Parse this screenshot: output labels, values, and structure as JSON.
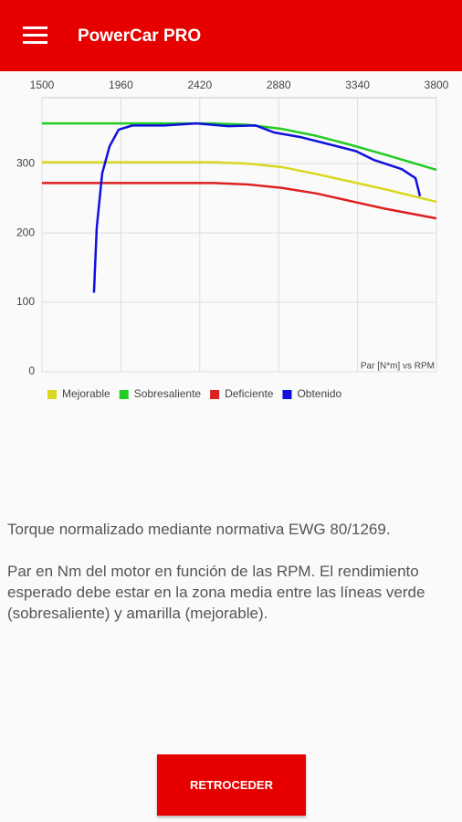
{
  "app_bar": {
    "title": "PowerCar PRO"
  },
  "chart_data": {
    "type": "line",
    "annotation": "Par [N*m] vs RPM",
    "xlim": [
      1500,
      3800
    ],
    "xticks": [
      1500,
      1960,
      2420,
      2880,
      3340,
      3800
    ],
    "ylim": [
      0,
      395
    ],
    "yticks": [
      0,
      100,
      200,
      300
    ],
    "grid": true,
    "legend": "bottom-left",
    "series": [
      {
        "name": "Mejorable",
        "color": "#d8d820",
        "x": [
          1500,
          2000,
          2500,
          2700,
          2900,
          3100,
          3300,
          3500,
          3800
        ],
        "values": [
          302,
          302,
          302,
          300,
          295,
          285,
          274,
          263,
          245
        ]
      },
      {
        "name": "Sobresaliente",
        "color": "#22cc22",
        "x": [
          1500,
          2000,
          2500,
          2700,
          2900,
          3100,
          3300,
          3500,
          3800
        ],
        "values": [
          358,
          358,
          358,
          356,
          350,
          340,
          327,
          313,
          291
        ]
      },
      {
        "name": "Deficiente",
        "color": "#dd2020",
        "x": [
          1500,
          2000,
          2500,
          2700,
          2900,
          3100,
          3300,
          3500,
          3800
        ],
        "values": [
          272,
          272,
          272,
          270,
          265,
          257,
          246,
          235,
          221
        ]
      },
      {
        "name": "Obtenido",
        "color": "#1010dd",
        "x": [
          1803,
          1819,
          1851,
          1894,
          1947,
          2027,
          2213,
          2400,
          2586,
          2746,
          2852,
          3012,
          3172,
          3331,
          3438,
          3598,
          3678,
          3704
        ],
        "values": [
          114,
          207,
          286,
          325,
          349,
          355,
          355,
          358,
          354,
          355,
          345,
          338,
          328,
          318,
          305,
          292,
          279,
          253
        ]
      }
    ]
  },
  "description": {
    "line1": "Torque normalizado mediante normativa EWG 80/1269.",
    "line2": "Par en Nm del motor en función de las RPM. El rendimiento esperado debe estar en la zona media entre las líneas verde (sobresaliente) y amarilla (mejorable)."
  },
  "button": {
    "label": "RETROCEDER"
  }
}
